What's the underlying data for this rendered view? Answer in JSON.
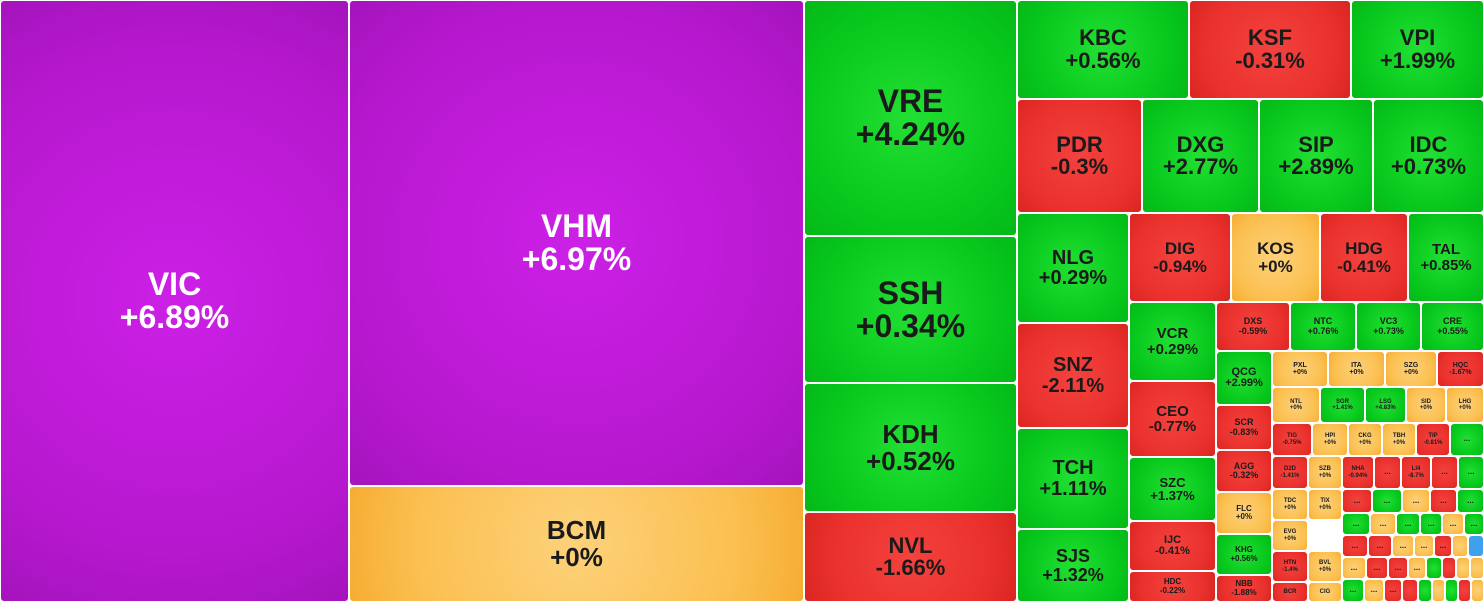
{
  "heatmap": {
    "colors": {
      "up": "#07c71c",
      "down": "#e9302c",
      "flat": "#fbbf4f",
      "ceiling": "#b718cf",
      "floor": "#3fa0ee"
    },
    "tiles": [
      {
        "ticker": "VIC",
        "change": "+6.89%"
      },
      {
        "ticker": "VHM",
        "change": "+6.97%"
      },
      {
        "ticker": "BCM",
        "change": "+0%"
      },
      {
        "ticker": "VRE",
        "change": "+4.24%"
      },
      {
        "ticker": "SSH",
        "change": "+0.34%"
      },
      {
        "ticker": "KDH",
        "change": "+0.52%"
      },
      {
        "ticker": "NVL",
        "change": "-1.66%"
      },
      {
        "ticker": "KBC",
        "change": "+0.56%"
      },
      {
        "ticker": "KSF",
        "change": "-0.31%"
      },
      {
        "ticker": "VPI",
        "change": "+1.99%"
      },
      {
        "ticker": "PDR",
        "change": "-0.3%"
      },
      {
        "ticker": "DXG",
        "change": "+2.77%"
      },
      {
        "ticker": "SIP",
        "change": "+2.89%"
      },
      {
        "ticker": "IDC",
        "change": "+0.73%"
      },
      {
        "ticker": "NLG",
        "change": "+0.29%"
      },
      {
        "ticker": "DIG",
        "change": "-0.94%"
      },
      {
        "ticker": "KOS",
        "change": "+0%"
      },
      {
        "ticker": "HDG",
        "change": "-0.41%"
      },
      {
        "ticker": "TAL",
        "change": "+0.85%"
      },
      {
        "ticker": "SNZ",
        "change": "-2.11%"
      },
      {
        "ticker": "TCH",
        "change": "+1.11%"
      },
      {
        "ticker": "SJS",
        "change": "+1.32%"
      },
      {
        "ticker": "VCR",
        "change": "+0.29%"
      },
      {
        "ticker": "CEO",
        "change": "-0.77%"
      },
      {
        "ticker": "SZC",
        "change": "+1.37%"
      },
      {
        "ticker": "IJC",
        "change": "-0.41%"
      },
      {
        "ticker": "HDC",
        "change": "-0.22%"
      },
      {
        "ticker": "DXS",
        "change": "-0.59%"
      },
      {
        "ticker": "NTC",
        "change": "+0.76%"
      },
      {
        "ticker": "VC3",
        "change": "+0.73%"
      },
      {
        "ticker": "CRE",
        "change": "+0.55%"
      },
      {
        "ticker": "QCG",
        "change": "+2.99%"
      },
      {
        "ticker": "SCR",
        "change": "-0.83%"
      },
      {
        "ticker": "AGG",
        "change": "-0.32%"
      },
      {
        "ticker": "FLC",
        "change": "+0%"
      },
      {
        "ticker": "KHG",
        "change": "+0.56%"
      },
      {
        "ticker": "NBB",
        "change": "-1.88%"
      },
      {
        "ticker": "PXL",
        "change": "+0%"
      },
      {
        "ticker": "ITA",
        "change": "+0%"
      },
      {
        "ticker": "SZG",
        "change": "+0%"
      },
      {
        "ticker": "HQC",
        "change": "-1.67%"
      },
      {
        "ticker": "NTL",
        "change": "+0%"
      },
      {
        "ticker": "SGR",
        "change": "+1.41%"
      },
      {
        "ticker": "LSG",
        "change": "+4.83%"
      },
      {
        "ticker": "SID",
        "change": "+0%"
      },
      {
        "ticker": "LHG",
        "change": "+0%"
      },
      {
        "ticker": "TIG",
        "change": "-0.75%"
      },
      {
        "ticker": "HPI",
        "change": "+0%"
      },
      {
        "ticker": "CKG",
        "change": "+0%"
      },
      {
        "ticker": "TBH",
        "change": "+0%"
      },
      {
        "ticker": "TIP",
        "change": "-0.81%"
      },
      {
        "ticker": "D2D",
        "change": "-1.41%"
      },
      {
        "ticker": "SZB",
        "change": "+0%"
      },
      {
        "ticker": "NHA",
        "change": "-0.94%"
      },
      {
        "ticker": "LI4",
        "change": "-8.7%"
      },
      {
        "ticker": "TDC",
        "change": "+0%"
      },
      {
        "ticker": "TIX",
        "change": "+0%"
      },
      {
        "ticker": "EVG",
        "change": "+0%"
      },
      {
        "ticker": "HTN",
        "change": "-1.4%"
      },
      {
        "ticker": "BVL",
        "change": "+0%"
      },
      {
        "ticker": "BCR",
        "change": ""
      },
      {
        "ticker": "CIG",
        "change": ""
      }
    ],
    "overflow_marker": "..."
  }
}
